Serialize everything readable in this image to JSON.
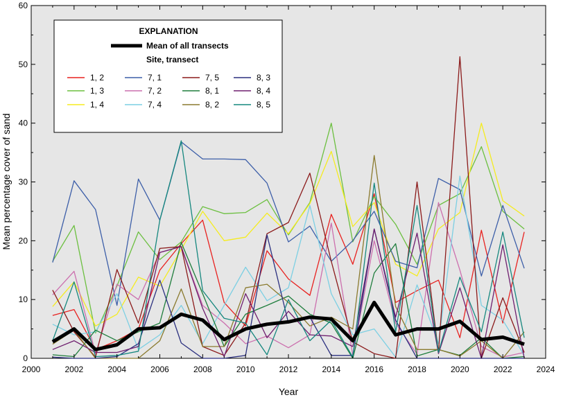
{
  "chart_data": {
    "type": "line",
    "xlabel": "Year",
    "ylabel": "Mean percentage cover of sand",
    "xlim": [
      2000,
      2024
    ],
    "ylim": [
      0,
      60
    ],
    "xticks": [
      2000,
      2002,
      2004,
      2006,
      2008,
      2010,
      2012,
      2014,
      2016,
      2018,
      2020,
      2022,
      2024
    ],
    "yticks": [
      0,
      10,
      20,
      30,
      40,
      50,
      60
    ],
    "grid": false,
    "background": "#e6e6e6",
    "legend": {
      "placement": "top-left",
      "title": "EXPLANATION",
      "mean_label": "Mean of all transects",
      "subtitle": "Site, transect"
    },
    "x": [
      2001,
      2002,
      2003,
      2004,
      2005,
      2006,
      2007,
      2008,
      2009,
      2010,
      2011,
      2012,
      2013,
      2014,
      2015,
      2016,
      2017,
      2018,
      2019,
      2020,
      2021,
      2022,
      2023
    ],
    "series": [
      {
        "name": "1, 2",
        "color": "#e8211f",
        "values": [
          7.3,
          8.3,
          1.5,
          3.0,
          5.0,
          15.0,
          19.5,
          23.5,
          9.5,
          5.5,
          18.3,
          13.5,
          10.7,
          24.5,
          16.0,
          28.0,
          9.5,
          11.5,
          13.3,
          3.5,
          21.8,
          6.0,
          21.5
        ]
      },
      {
        "name": "1, 3",
        "color": "#6bbf3f",
        "values": [
          16.5,
          22.6,
          4.3,
          12.3,
          21.5,
          16.8,
          19.8,
          25.8,
          24.6,
          24.8,
          27.0,
          21.0,
          26.5,
          40.0,
          19.8,
          27.5,
          22.8,
          16.0,
          26.0,
          28.0,
          36.0,
          25.0,
          22.0
        ]
      },
      {
        "name": "1, 4",
        "color": "#f5ec1e",
        "values": [
          8.8,
          13.0,
          5.5,
          7.5,
          13.8,
          12.3,
          18.5,
          25.0,
          20.0,
          20.6,
          24.7,
          21.2,
          26.3,
          35.2,
          22.4,
          26.5,
          16.0,
          14.0,
          22.0,
          24.8,
          40.0,
          26.8,
          24.2
        ]
      },
      {
        "name": "7, 1",
        "color": "#3c5ea8",
        "values": [
          16.3,
          30.2,
          25.3,
          9.0,
          30.5,
          23.5,
          36.8,
          33.9,
          33.9,
          33.8,
          29.8,
          19.8,
          22.5,
          16.5,
          20.0,
          25.0,
          16.5,
          15.4,
          30.6,
          28.7,
          14.0,
          26.0,
          15.3
        ]
      },
      {
        "name": "7, 2",
        "color": "#cc6fae",
        "values": [
          10.8,
          14.8,
          0.8,
          12.6,
          10.0,
          18.0,
          19.0,
          9.0,
          6.0,
          2.5,
          3.8,
          1.8,
          4.0,
          23.0,
          0.5,
          20.0,
          6.0,
          0.7,
          26.5,
          15.0,
          2.0,
          0.2,
          1.0
        ]
      },
      {
        "name": "7, 4",
        "color": "#7ccfe3",
        "values": [
          5.8,
          4.0,
          4.5,
          11.0,
          1.5,
          4.0,
          9.0,
          2.5,
          9.0,
          15.5,
          9.8,
          12.0,
          26.0,
          11.0,
          4.0,
          5.0,
          0.2,
          12.5,
          2.5,
          31.0,
          9.0,
          6.5,
          0.5
        ]
      },
      {
        "name": "7, 5",
        "color": "#8b1a1a",
        "values": [
          11.6,
          4.5,
          0.2,
          15.1,
          6.0,
          18.7,
          19.0,
          2.0,
          0.5,
          6.0,
          21.2,
          23.1,
          31.5,
          16.5,
          2.8,
          0.8,
          0.0,
          30.0,
          1.0,
          51.3,
          0.0,
          10.3,
          1.0
        ]
      },
      {
        "name": "8, 1",
        "color": "#1e7d3c",
        "values": [
          0.6,
          0.3,
          4.8,
          3.0,
          4.5,
          6.0,
          19.7,
          11.0,
          2.0,
          7.5,
          9.0,
          10.6,
          7.5,
          6.0,
          0.0,
          14.5,
          19.5,
          0.4,
          1.5,
          0.5,
          3.5,
          0.0,
          0.3
        ]
      },
      {
        "name": "8, 2",
        "color": "#8a7a2e",
        "values": [
          2.4,
          4.8,
          0.0,
          0.0,
          0.0,
          3.0,
          11.8,
          2.0,
          2.0,
          12.0,
          12.6,
          9.5,
          5.5,
          7.0,
          5.0,
          34.5,
          8.8,
          1.5,
          1.5,
          0.4,
          3.0,
          0.0,
          4.5
        ]
      },
      {
        "name": "8, 3",
        "color": "#2a2f7f",
        "values": [
          0.2,
          0.0,
          0.0,
          0.3,
          2.5,
          13.3,
          2.6,
          0.0,
          0.0,
          0.5,
          21.0,
          6.0,
          7.0,
          0.5,
          0.5,
          22.0,
          6.5,
          0.0,
          0.0,
          0.0,
          0.0,
          0.0,
          0.0
        ]
      },
      {
        "name": "8, 4",
        "color": "#6e1e6e",
        "values": [
          1.5,
          3.0,
          1.0,
          1.0,
          2.0,
          18.0,
          19.0,
          8.5,
          0.3,
          11.0,
          3.5,
          8.0,
          4.0,
          3.8,
          2.0,
          22.0,
          7.0,
          21.3,
          0.8,
          12.0,
          0.0,
          19.3,
          0.0
        ]
      },
      {
        "name": "8, 5",
        "color": "#15877e",
        "values": [
          3.0,
          13.0,
          0.3,
          0.5,
          1.2,
          23.5,
          37.0,
          11.5,
          6.8,
          6.0,
          0.6,
          10.0,
          3.0,
          6.5,
          0.2,
          29.8,
          4.5,
          26.0,
          1.0,
          13.8,
          4.5,
          21.5,
          3.5
        ]
      }
    ],
    "mean": {
      "name": "Mean of all transects",
      "color": "#000000",
      "values": [
        2.8,
        5.0,
        1.5,
        2.3,
        5.0,
        5.2,
        7.5,
        6.5,
        3.2,
        5.0,
        5.8,
        6.2,
        7.0,
        6.7,
        3.0,
        9.5,
        4.0,
        5.0,
        5.0,
        6.3,
        3.2,
        3.6,
        2.4
      ]
    }
  }
}
